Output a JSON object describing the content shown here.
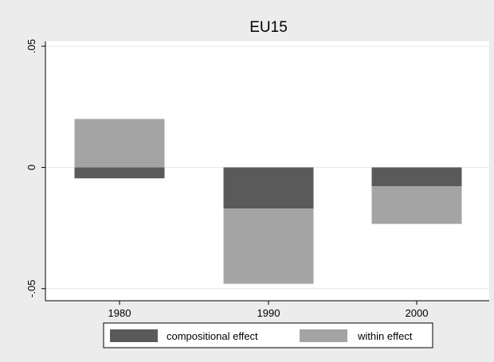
{
  "chart_data": {
    "type": "bar",
    "stacked": true,
    "title": "EU15",
    "xlabel": "",
    "ylabel": "",
    "categories": [
      "1980",
      "1990",
      "2000"
    ],
    "series": [
      {
        "name": "compositional effect",
        "values": [
          -0.0045,
          -0.017,
          -0.0078
        ],
        "color": "#5a5a5a"
      },
      {
        "name": "within effect",
        "values": [
          0.02,
          -0.031,
          -0.0155
        ],
        "color": "#a4a4a4"
      }
    ],
    "ylim": [
      -0.055,
      0.052
    ],
    "yticks": [
      {
        "value": 0.05,
        "label": ".05"
      },
      {
        "value": 0,
        "label": "0"
      },
      {
        "value": -0.05,
        "label": "-.05"
      }
    ],
    "grid": true,
    "legend_position": "bottom",
    "colors": {
      "outer_background": "#ececec",
      "plot_background": "#ffffff",
      "gridline": "#e6e6e6",
      "axis": "#000000"
    }
  }
}
